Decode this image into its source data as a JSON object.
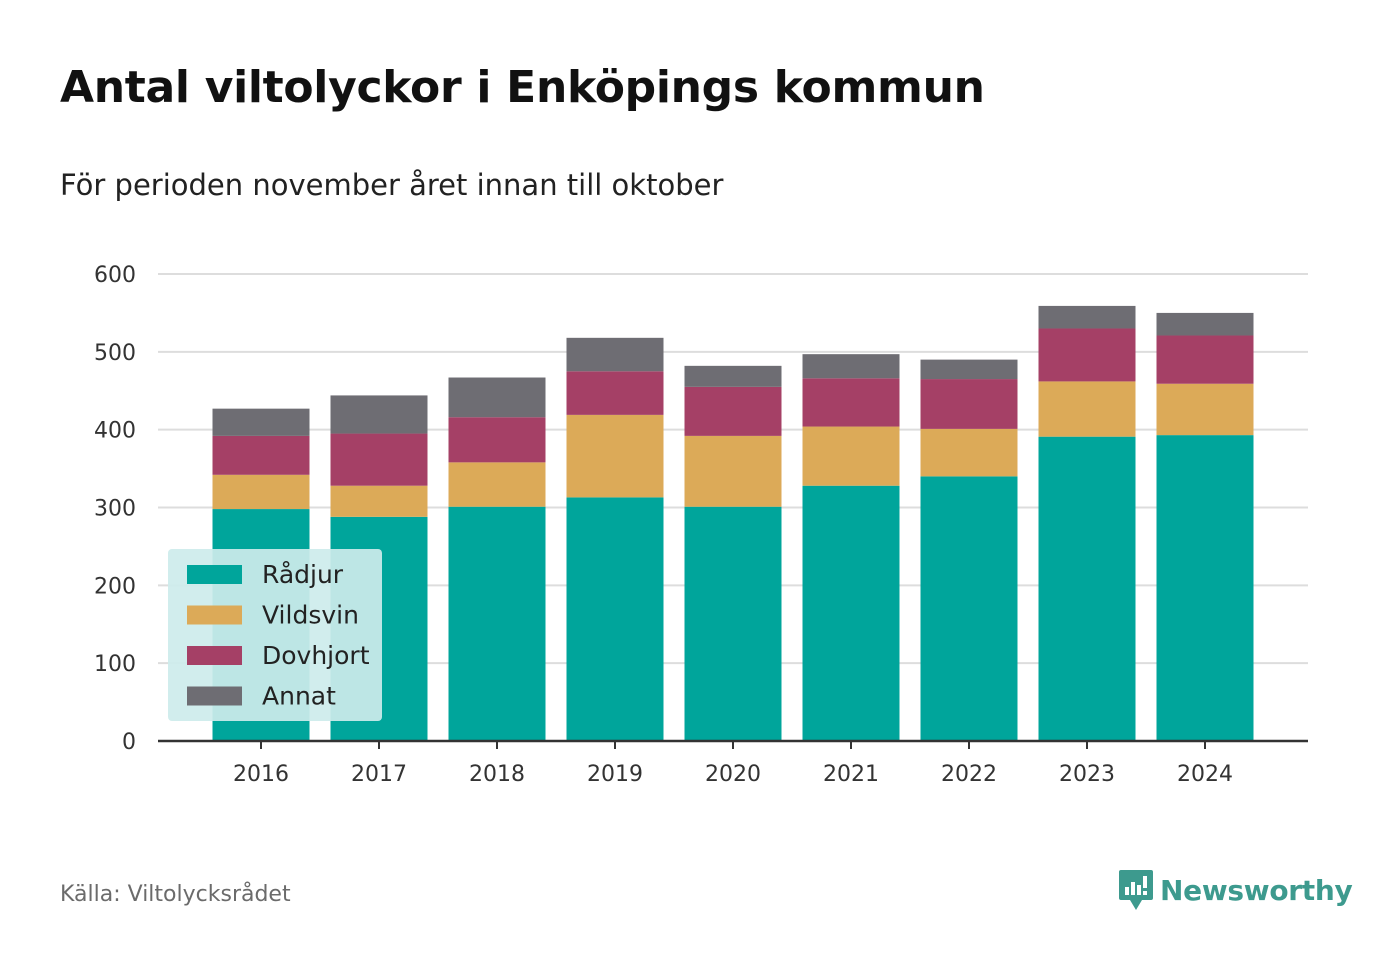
{
  "header": {
    "title": "Antal viltolyckor i Enköpings kommun",
    "subtitle": "För perioden november året innan till oktober"
  },
  "footer": {
    "source": "Källa: Viltolycksrådet",
    "brand": "Newsworthy",
    "brand_icon": "bar-chart-speech-bubble-icon"
  },
  "colors": {
    "Rådjur": "#00a59b",
    "Vildsvin": "#dcaa58",
    "Dovhjort": "#a54066",
    "Annat": "#6e6d73",
    "grid": "#dddddd",
    "axis": "#333333",
    "legend_bg": "#cdeceb",
    "brand": "#3d9a8e"
  },
  "chart_data": {
    "type": "bar",
    "stacked": true,
    "title": "Antal viltolyckor i Enköpings kommun",
    "subtitle": "För perioden november året innan till oktober",
    "xlabel": "",
    "ylabel": "",
    "categories": [
      "2016",
      "2017",
      "2018",
      "2019",
      "2020",
      "2021",
      "2022",
      "2023",
      "2024"
    ],
    "ylim": [
      0,
      600
    ],
    "yticks": [
      0,
      100,
      200,
      300,
      400,
      500,
      600
    ],
    "grid": true,
    "legend_position": "bottom-left",
    "series": [
      {
        "name": "Rådjur",
        "values": [
          298,
          288,
          301,
          313,
          301,
          328,
          340,
          391,
          393
        ]
      },
      {
        "name": "Vildsvin",
        "values": [
          44,
          40,
          57,
          106,
          91,
          76,
          61,
          71,
          66
        ]
      },
      {
        "name": "Dovhjort",
        "values": [
          50,
          67,
          58,
          56,
          63,
          62,
          64,
          68,
          62
        ]
      },
      {
        "name": "Annat",
        "values": [
          35,
          49,
          51,
          43,
          27,
          31,
          25,
          29,
          29
        ]
      }
    ]
  }
}
